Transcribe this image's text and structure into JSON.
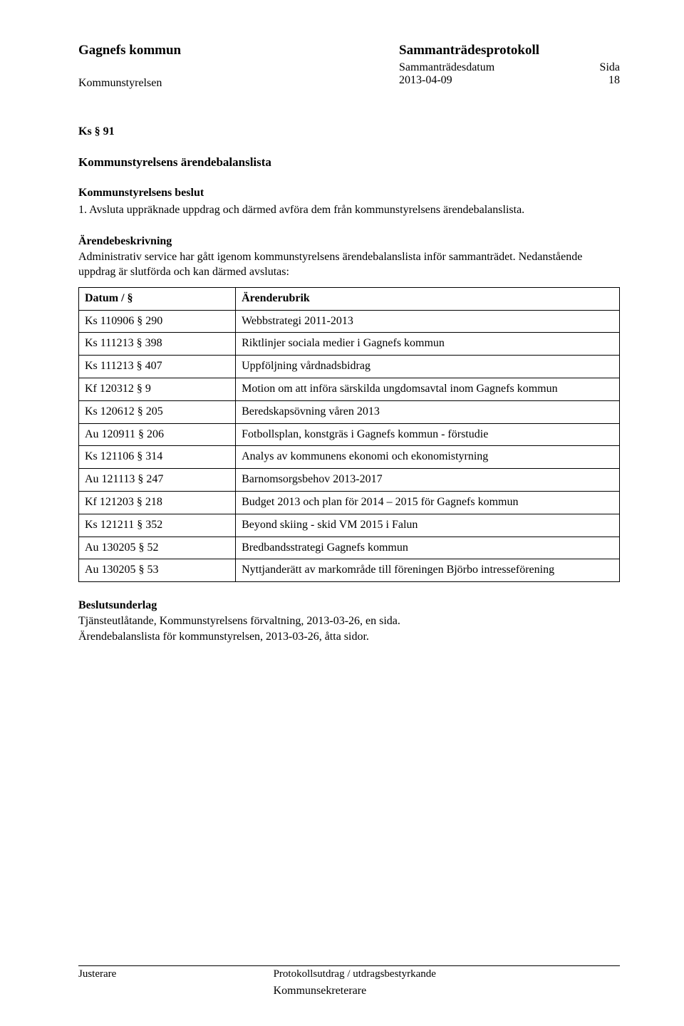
{
  "header": {
    "org": "Gagnefs kommun",
    "doc_type": "Sammanträdesprotokoll",
    "body": "Kommunstyrelsen",
    "date_label": "Sammanträdesdatum",
    "date_value": "2013-04-09",
    "page_label": "Sida",
    "page_value": "18"
  },
  "section": {
    "ref": "Ks § 91",
    "title": "Kommunstyrelsens ärendebalanslista",
    "decision_header": "Kommunstyrelsens beslut",
    "decision_text": "1.   Avsluta uppräknade uppdrag och därmed avföra dem från kommunstyrelsens ärendebalanslista.",
    "desc_header": "Ärendebeskrivning",
    "desc_text": "Administrativ service har gått igenom kommunstyrelsens ärendebalanslista inför sammanträdet. Nedanstående uppdrag är slutförda och kan därmed avslutas:"
  },
  "table": {
    "col_date": "Datum / §",
    "col_rubrik": "Ärenderubrik",
    "rows": [
      {
        "d": "Ks 110906 § 290",
        "r": "Webbstrategi 2011-2013"
      },
      {
        "d": "Ks 111213 § 398",
        "r": "Riktlinjer sociala medier i Gagnefs kommun"
      },
      {
        "d": "Ks 111213 § 407",
        "r": "Uppföljning vårdnadsbidrag"
      },
      {
        "d": "Kf 120312 § 9",
        "r": "Motion om att införa särskilda ungdomsavtal inom Gagnefs kommun"
      },
      {
        "d": "Ks 120612 § 205",
        "r": "Beredskapsövning våren 2013"
      },
      {
        "d": "Au 120911 § 206",
        "r": "Fotbollsplan, konstgräs i Gagnefs kommun - förstudie"
      },
      {
        "d": "Ks 121106 § 314",
        "r": "Analys av kommunens ekonomi och ekonomistyrning"
      },
      {
        "d": "Au 121113 § 247",
        "r": "Barnomsorgsbehov 2013-2017"
      },
      {
        "d": "Kf 121203 § 218",
        "r": "Budget 2013 och plan för 2014 – 2015 för Gagnefs kommun"
      },
      {
        "d": "Ks 121211 § 352",
        "r": "Beyond skiing - skid VM 2015 i Falun"
      },
      {
        "d": "Au 130205 § 52",
        "r": "Bredbandsstrategi Gagnefs kommun"
      },
      {
        "d": "Au 130205 § 53",
        "r": "Nyttjanderätt av markområde till föreningen Björbo intresseförening"
      }
    ]
  },
  "basis": {
    "header": "Beslutsunderlag",
    "line1": "Tjänsteutlåtande, Kommunstyrelsens förvaltning, 2013-03-26, en sida.",
    "line2": "Ärendebalanslista för kommunstyrelsen, 2013-03-26, åtta sidor."
  },
  "footer": {
    "left": "Justerare",
    "right": "Protokollsutdrag / utdragsbestyrkande",
    "right_sub": "Kommunsekreterare"
  }
}
